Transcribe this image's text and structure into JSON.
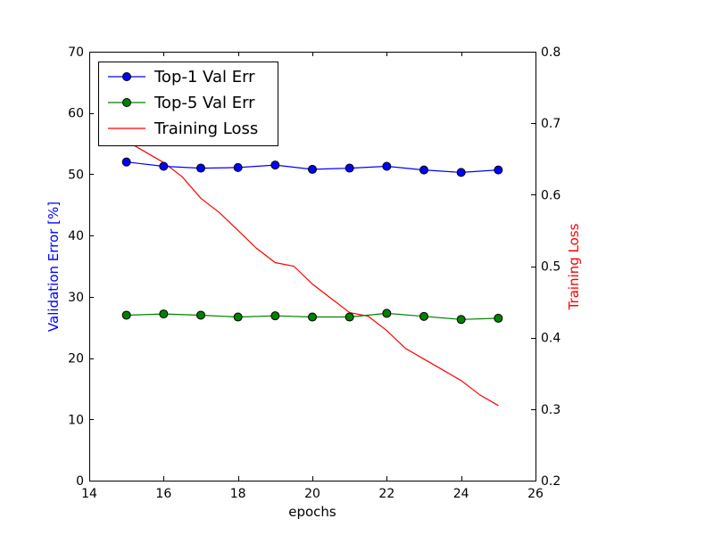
{
  "chart_data": {
    "type": "line",
    "xlabel": "epochs",
    "ylabel_left": "Validation Error [%]",
    "ylabel_right": "Training Loss",
    "xlim": [
      14,
      26
    ],
    "ylim_left": [
      0,
      70
    ],
    "ylim_right": [
      0.2,
      0.8
    ],
    "x_ticks": [
      "14",
      "16",
      "18",
      "20",
      "22",
      "24",
      "26"
    ],
    "y_ticks_left": [
      "0",
      "10",
      "20",
      "30",
      "40",
      "50",
      "60",
      "70"
    ],
    "y_ticks_right": [
      "0.2",
      "0.3",
      "0.4",
      "0.5",
      "0.6",
      "0.7",
      "0.8"
    ],
    "grid": false,
    "legend_position": "top-left",
    "series": [
      {
        "name": "Top-1 Val Err",
        "axis": "left",
        "color": "#0000ff",
        "marker": "circle",
        "x": [
          15,
          16,
          17,
          18,
          19,
          20,
          21,
          22,
          23,
          24,
          25
        ],
        "values": [
          52.0,
          51.3,
          51.0,
          51.1,
          51.5,
          50.8,
          51.0,
          51.3,
          50.7,
          50.3,
          50.7
        ]
      },
      {
        "name": "Top-5 Val Err",
        "axis": "left",
        "color": "#008000",
        "marker": "circle",
        "x": [
          15,
          16,
          17,
          18,
          19,
          20,
          21,
          22,
          23,
          24,
          25
        ],
        "values": [
          27.0,
          27.2,
          27.0,
          26.7,
          26.9,
          26.7,
          26.7,
          27.3,
          26.8,
          26.3,
          26.5
        ]
      },
      {
        "name": "Training Loss",
        "axis": "right",
        "color": "#ff0000",
        "marker": "none",
        "x": [
          15.0,
          15.5,
          16.0,
          16.5,
          17.0,
          17.5,
          18.0,
          18.5,
          19.0,
          19.5,
          20.0,
          20.5,
          21.0,
          21.5,
          22.0,
          22.5,
          23.0,
          23.5,
          24.0,
          24.5,
          25.0
        ],
        "values": [
          0.675,
          0.66,
          0.645,
          0.625,
          0.595,
          0.575,
          0.55,
          0.525,
          0.505,
          0.5,
          0.475,
          0.455,
          0.435,
          0.43,
          0.41,
          0.385,
          0.37,
          0.355,
          0.34,
          0.32,
          0.305
        ]
      }
    ]
  }
}
